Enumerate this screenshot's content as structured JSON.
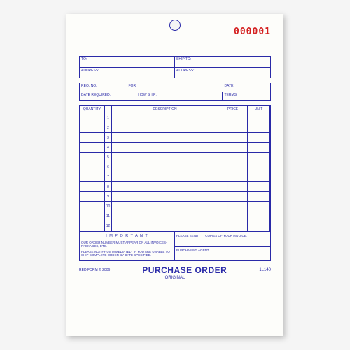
{
  "form_number": "000001",
  "address": {
    "to_label": "TO:",
    "ship_to_label": "SHIP TO:",
    "address_label": "ADDRESS:",
    "address2_label": "ADDRESS:"
  },
  "meta": {
    "req_no": "REQ. NO.",
    "for": "FOR:",
    "date": "DATE:",
    "date_required": "DATE REQUIRED:",
    "how_ship": "HOW SHIP:",
    "terms": "TERMS:"
  },
  "columns": {
    "quantity": "QUANTITY",
    "description": "DESCRIPTION",
    "price": "PRICE",
    "unit": "UNIT"
  },
  "row_count": 12,
  "footer": {
    "important": "I M P O R T A N T",
    "note1": "OUR ORDER NUMBER MUST APPEAR ON ALL INVOICES-PACKAGES, ETC.",
    "note2": "PLEASE NOTIFY US IMMEDIATELY IF YOU ARE UNABLE TO SHIP COMPLETE ORDER BY DATE SPECIFIED.",
    "please_send": "PLEASE SEND",
    "copies": "COPIES OF YOUR INVOICE.",
    "agent": "PURCHASING AGENT"
  },
  "brand": "REDIFORM © 2006",
  "title": "PURCHASE ORDER",
  "subtitle": "ORIGINAL",
  "sku": "1L140",
  "colors": {
    "ink": "#2a2aa8",
    "number": "#d42020",
    "paper": "#fdfdfa"
  }
}
